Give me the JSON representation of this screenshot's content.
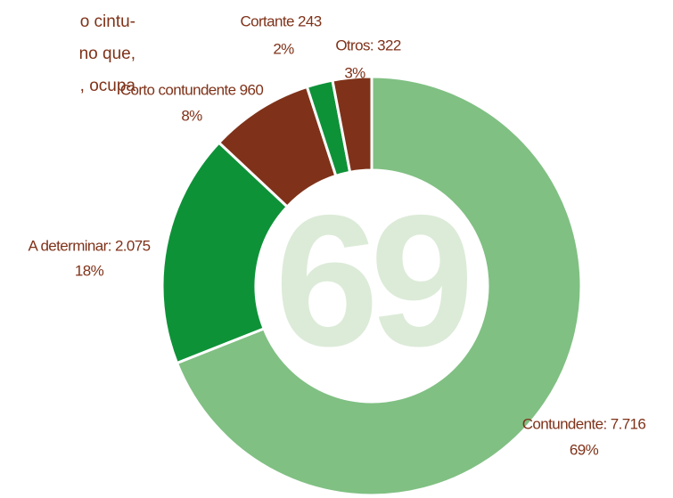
{
  "background_text": [
    "o cintu-",
    "no que,",
    ", ocupa"
  ],
  "chart_data": {
    "type": "donut",
    "categories": [
      "Contundente: 7.716",
      "A determinar: 2.075",
      "Corto contundente 960",
      "Cortante 243",
      "Otros: 322"
    ],
    "values": [
      69,
      18,
      8,
      2,
      3
    ],
    "value_labels": [
      "69%",
      "18%",
      "8%",
      "2%",
      "3%"
    ],
    "colors": [
      "#80c083",
      "#0e9238",
      "#7f3219",
      "#0e9238",
      "#7f3219"
    ],
    "center_label": "69"
  }
}
